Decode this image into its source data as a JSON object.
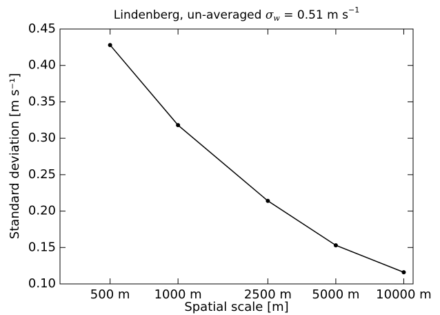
{
  "chart_data": {
    "type": "line",
    "title": {
      "text": "Lindenberg, un-averaged",
      "symbol": "σ",
      "subscript": "w",
      "rest": "= 0.51 m s",
      "superscript": "−1"
    },
    "xlabel": "Spatial scale [m]",
    "ylabel": "Standard deviation [m s⁻¹]",
    "x": [
      500,
      1000,
      2500,
      5000,
      10000
    ],
    "series": [
      {
        "color": "#000000",
        "values": [
          0.428,
          0.318,
          0.214,
          0.153,
          0.116
        ]
      }
    ],
    "xscale": "log",
    "xlim": [
      300,
      11000
    ],
    "xticks": [
      {
        "value": 500,
        "label": "500 m"
      },
      {
        "value": 1000,
        "label": "1000 m"
      },
      {
        "value": 2500,
        "label": "2500 m"
      },
      {
        "value": 5000,
        "label": "5000 m"
      },
      {
        "value": 10000,
        "label": "10000 m"
      }
    ],
    "ylim": [
      0.1,
      0.45
    ],
    "yticks": [
      {
        "value": 0.1,
        "label": "0.10"
      },
      0.15,
      {
        "value": 0.2,
        "label": "0.20"
      },
      0.25,
      {
        "value": 0.3,
        "label": "0.30"
      },
      0.35,
      {
        "value": 0.4,
        "label": "0.40"
      },
      0.45
    ],
    "grid": false
  }
}
